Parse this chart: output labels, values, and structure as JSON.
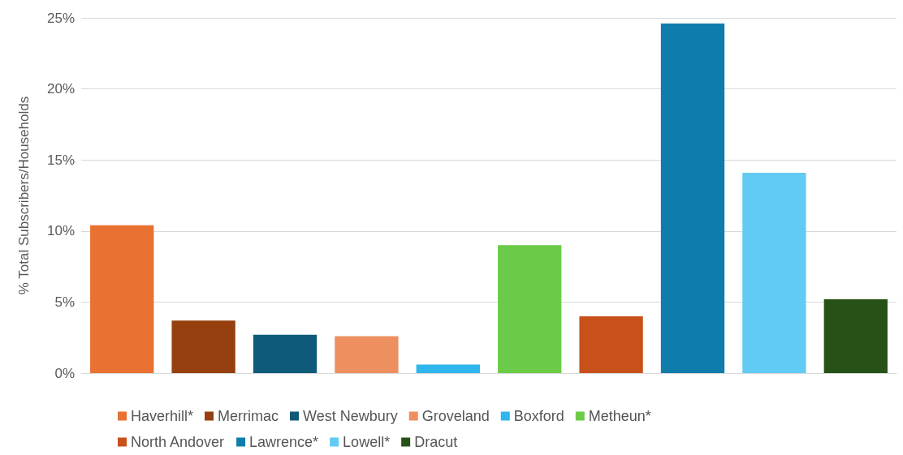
{
  "chart_data": {
    "type": "bar",
    "ylabel": "% Total Subscribers/Households",
    "categories": [
      null,
      null,
      null,
      null,
      null,
      null,
      null,
      null,
      null,
      null
    ],
    "series": [
      {
        "name": "Haverhill*",
        "color": "#e97132",
        "values": [
          10.4,
          null,
          null,
          null,
          null,
          null,
          null,
          null,
          null,
          null
        ]
      },
      {
        "name": "Merrimac",
        "color": "#96400f",
        "values": [
          null,
          3.7,
          null,
          null,
          null,
          null,
          null,
          null,
          null,
          null
        ]
      },
      {
        "name": "West Newbury",
        "color": "#0e5a7a",
        "values": [
          null,
          null,
          2.7,
          null,
          null,
          null,
          null,
          null,
          null,
          null
        ]
      },
      {
        "name": "Groveland",
        "color": "#ed8f5e",
        "values": [
          null,
          null,
          null,
          2.6,
          null,
          null,
          null,
          null,
          null,
          null
        ]
      },
      {
        "name": "Boxford",
        "color": "#2fb6ec",
        "values": [
          null,
          null,
          null,
          null,
          0.6,
          null,
          null,
          null,
          null,
          null
        ]
      },
      {
        "name": "Metheun*",
        "color": "#6bcb48",
        "values": [
          null,
          null,
          null,
          null,
          null,
          9.0,
          null,
          null,
          null,
          null
        ]
      },
      {
        "name": "North Andover",
        "color": "#c8501a",
        "values": [
          null,
          null,
          null,
          null,
          null,
          null,
          4.0,
          null,
          null,
          null
        ]
      },
      {
        "name": "Lawrence*",
        "color": "#0e7dab",
        "values": [
          null,
          null,
          null,
          null,
          null,
          null,
          null,
          24.6,
          null,
          null
        ]
      },
      {
        "name": "Lowell*",
        "color": "#61cbf3",
        "values": [
          null,
          null,
          null,
          null,
          null,
          null,
          null,
          null,
          14.1,
          null
        ]
      },
      {
        "name": "Dracut",
        "color": "#265218",
        "values": [
          null,
          null,
          null,
          null,
          null,
          null,
          null,
          null,
          null,
          5.2
        ]
      }
    ],
    "ylim": [
      0,
      25
    ],
    "yticks": [
      {
        "value": 0,
        "label": "0%"
      },
      {
        "value": 5,
        "label": "5%"
      },
      {
        "value": 10,
        "label": "10%"
      },
      {
        "value": 15,
        "label": "15%"
      },
      {
        "value": 20,
        "label": "20%"
      },
      {
        "value": 25,
        "label": "25%"
      }
    ],
    "grid": "y",
    "legend": "bottom"
  }
}
